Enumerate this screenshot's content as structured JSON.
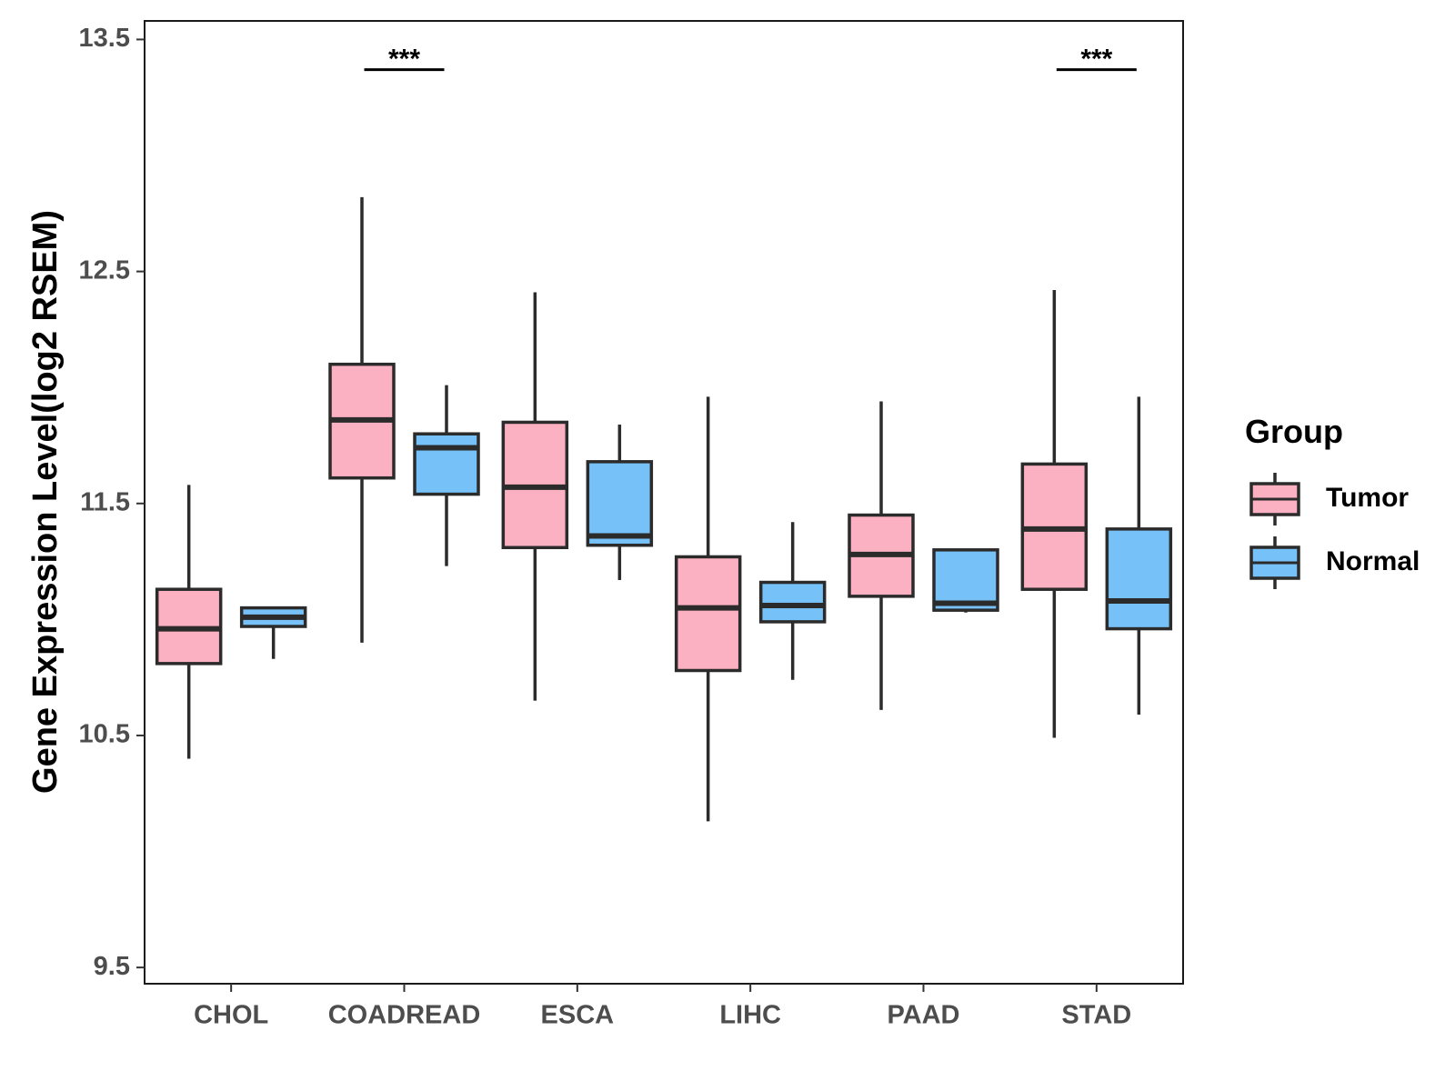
{
  "chart_data": {
    "type": "boxplot",
    "title": "",
    "xlabel": "",
    "ylabel": "Gene Expression Level(log2 RSEM)",
    "ylim": [
      9.43,
      13.58
    ],
    "yticks": [
      9.5,
      10.5,
      11.5,
      12.5,
      13.5
    ],
    "ytick_labels": [
      "9.5",
      "10.5",
      "11.5",
      "12.5",
      "13.5"
    ],
    "categories": [
      "CHOL",
      "COADREAD",
      "ESCA",
      "LIHC",
      "PAAD",
      "STAD"
    ],
    "legend": {
      "title": "Group",
      "position": "right",
      "entries": [
        {
          "name": "Tumor",
          "color": "#fbb1c1"
        },
        {
          "name": "Normal",
          "color": "#76c1f7"
        }
      ]
    },
    "series": [
      {
        "name": "Tumor",
        "color": "#fbb1c1",
        "boxes": [
          {
            "category": "CHOL",
            "whisker_low": 10.4,
            "q1": 10.81,
            "median": 10.96,
            "q3": 11.13,
            "whisker_high": 11.58
          },
          {
            "category": "COADREAD",
            "whisker_low": 10.9,
            "q1": 11.61,
            "median": 11.86,
            "q3": 12.1,
            "whisker_high": 12.82
          },
          {
            "category": "ESCA",
            "whisker_low": 10.65,
            "q1": 11.31,
            "median": 11.57,
            "q3": 11.85,
            "whisker_high": 12.41
          },
          {
            "category": "LIHC",
            "whisker_low": 10.13,
            "q1": 10.78,
            "median": 11.05,
            "q3": 11.27,
            "whisker_high": 11.96
          },
          {
            "category": "PAAD",
            "whisker_low": 10.61,
            "q1": 11.1,
            "median": 11.28,
            "q3": 11.45,
            "whisker_high": 11.94
          },
          {
            "category": "STAD",
            "whisker_low": 10.49,
            "q1": 11.13,
            "median": 11.39,
            "q3": 11.67,
            "whisker_high": 12.42
          }
        ]
      },
      {
        "name": "Normal",
        "color": "#76c1f7",
        "boxes": [
          {
            "category": "CHOL",
            "whisker_low": 10.83,
            "q1": 10.97,
            "median": 11.01,
            "q3": 11.05,
            "whisker_high": 11.05
          },
          {
            "category": "COADREAD",
            "whisker_low": 11.23,
            "q1": 11.54,
            "median": 11.74,
            "q3": 11.8,
            "whisker_high": 12.01
          },
          {
            "category": "ESCA",
            "whisker_low": 11.17,
            "q1": 11.32,
            "median": 11.36,
            "q3": 11.68,
            "whisker_high": 11.84
          },
          {
            "category": "LIHC",
            "whisker_low": 10.74,
            "q1": 10.99,
            "median": 11.06,
            "q3": 11.16,
            "whisker_high": 11.42
          },
          {
            "category": "PAAD",
            "whisker_low": 11.03,
            "q1": 11.04,
            "median": 11.07,
            "q3": 11.3,
            "whisker_high": 11.3
          },
          {
            "category": "STAD",
            "whisker_low": 10.59,
            "q1": 10.96,
            "median": 11.08,
            "q3": 11.39,
            "whisker_high": 11.96
          }
        ]
      }
    ],
    "annotations": [
      {
        "category": "COADREAD",
        "label": "***",
        "y": 13.37
      },
      {
        "category": "STAD",
        "label": "***",
        "y": 13.37
      }
    ],
    "grid": false
  }
}
